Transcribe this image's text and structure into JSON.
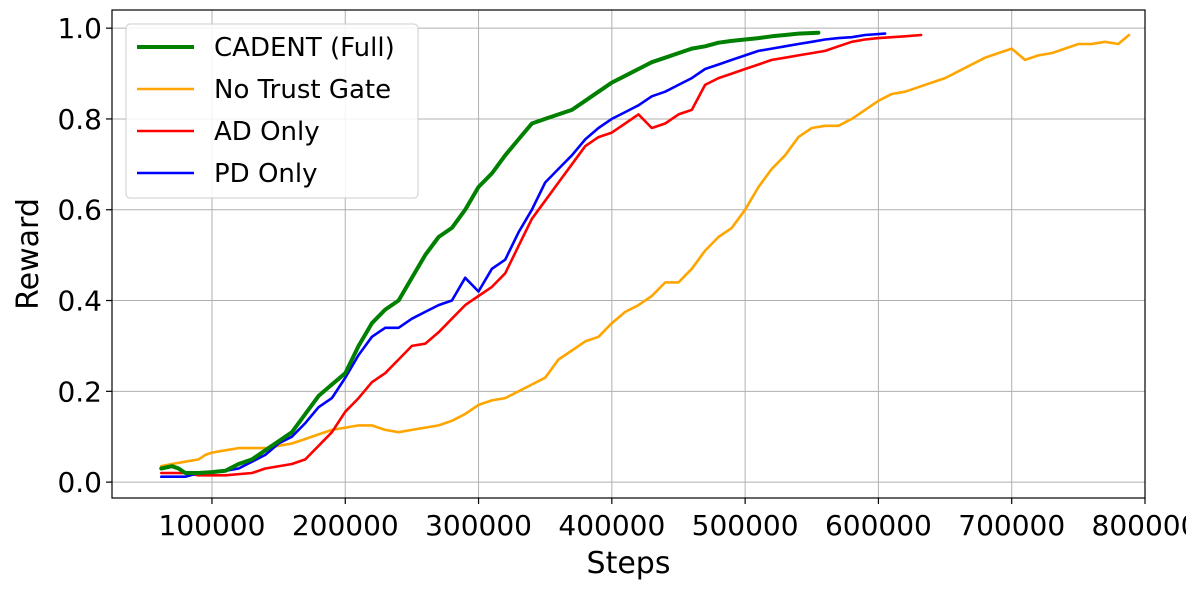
{
  "chart_data": {
    "type": "line",
    "title": "",
    "xlabel": "Steps",
    "ylabel": "Reward",
    "xlim": [
      25000,
      800000
    ],
    "ylim": [
      -0.035,
      1.04
    ],
    "xticks": [
      100000,
      200000,
      300000,
      400000,
      500000,
      600000,
      700000,
      800000
    ],
    "xtick_labels": [
      "100000",
      "200000",
      "300000",
      "400000",
      "500000",
      "600000",
      "700000",
      "800000"
    ],
    "yticks": [
      0.0,
      0.2,
      0.4,
      0.6,
      0.8,
      1.0
    ],
    "ytick_labels": [
      "0.0",
      "0.2",
      "0.4",
      "0.6",
      "0.8",
      "1.0"
    ],
    "grid": true,
    "legend_position": "top-left",
    "series": [
      {
        "name": "CADENT (Full)",
        "color": "#008000",
        "points": [
          [
            62000,
            0.03
          ],
          [
            70000,
            0.035
          ],
          [
            75000,
            0.03
          ],
          [
            80000,
            0.02
          ],
          [
            90000,
            0.02
          ],
          [
            100000,
            0.022
          ],
          [
            110000,
            0.025
          ],
          [
            120000,
            0.04
          ],
          [
            130000,
            0.05
          ],
          [
            140000,
            0.07
          ],
          [
            150000,
            0.09
          ],
          [
            160000,
            0.11
          ],
          [
            170000,
            0.15
          ],
          [
            180000,
            0.19
          ],
          [
            190000,
            0.215
          ],
          [
            200000,
            0.24
          ],
          [
            210000,
            0.3
          ],
          [
            220000,
            0.35
          ],
          [
            230000,
            0.38
          ],
          [
            240000,
            0.4
          ],
          [
            250000,
            0.45
          ],
          [
            260000,
            0.5
          ],
          [
            270000,
            0.54
          ],
          [
            280000,
            0.56
          ],
          [
            290000,
            0.6
          ],
          [
            300000,
            0.65
          ],
          [
            310000,
            0.68
          ],
          [
            320000,
            0.72
          ],
          [
            330000,
            0.755
          ],
          [
            340000,
            0.79
          ],
          [
            350000,
            0.8
          ],
          [
            360000,
            0.81
          ],
          [
            370000,
            0.82
          ],
          [
            380000,
            0.84
          ],
          [
            390000,
            0.86
          ],
          [
            400000,
            0.88
          ],
          [
            410000,
            0.895
          ],
          [
            420000,
            0.91
          ],
          [
            430000,
            0.925
          ],
          [
            440000,
            0.935
          ],
          [
            450000,
            0.945
          ],
          [
            460000,
            0.955
          ],
          [
            470000,
            0.96
          ],
          [
            480000,
            0.968
          ],
          [
            490000,
            0.972
          ],
          [
            500000,
            0.975
          ],
          [
            510000,
            0.978
          ],
          [
            520000,
            0.982
          ],
          [
            530000,
            0.985
          ],
          [
            540000,
            0.988
          ],
          [
            555000,
            0.99
          ]
        ]
      },
      {
        "name": "No Trust Gate",
        "color": "#FFA500",
        "points": [
          [
            62000,
            0.035
          ],
          [
            70000,
            0.04
          ],
          [
            80000,
            0.045
          ],
          [
            90000,
            0.05
          ],
          [
            95000,
            0.06
          ],
          [
            100000,
            0.065
          ],
          [
            110000,
            0.07
          ],
          [
            120000,
            0.075
          ],
          [
            130000,
            0.075
          ],
          [
            140000,
            0.075
          ],
          [
            150000,
            0.08
          ],
          [
            160000,
            0.085
          ],
          [
            170000,
            0.095
          ],
          [
            180000,
            0.105
          ],
          [
            190000,
            0.115
          ],
          [
            200000,
            0.12
          ],
          [
            210000,
            0.125
          ],
          [
            220000,
            0.125
          ],
          [
            230000,
            0.115
          ],
          [
            240000,
            0.11
          ],
          [
            250000,
            0.115
          ],
          [
            260000,
            0.12
          ],
          [
            270000,
            0.125
          ],
          [
            280000,
            0.135
          ],
          [
            290000,
            0.15
          ],
          [
            300000,
            0.17
          ],
          [
            310000,
            0.18
          ],
          [
            320000,
            0.185
          ],
          [
            330000,
            0.2
          ],
          [
            340000,
            0.215
          ],
          [
            350000,
            0.23
          ],
          [
            360000,
            0.27
          ],
          [
            370000,
            0.29
          ],
          [
            380000,
            0.31
          ],
          [
            390000,
            0.32
          ],
          [
            400000,
            0.35
          ],
          [
            410000,
            0.375
          ],
          [
            420000,
            0.39
          ],
          [
            430000,
            0.41
          ],
          [
            440000,
            0.44
          ],
          [
            450000,
            0.44
          ],
          [
            460000,
            0.47
          ],
          [
            470000,
            0.51
          ],
          [
            480000,
            0.54
          ],
          [
            490000,
            0.56
          ],
          [
            500000,
            0.6
          ],
          [
            510000,
            0.65
          ],
          [
            520000,
            0.69
          ],
          [
            530000,
            0.72
          ],
          [
            540000,
            0.76
          ],
          [
            550000,
            0.78
          ],
          [
            560000,
            0.785
          ],
          [
            570000,
            0.785
          ],
          [
            580000,
            0.8
          ],
          [
            590000,
            0.82
          ],
          [
            600000,
            0.84
          ],
          [
            610000,
            0.855
          ],
          [
            620000,
            0.86
          ],
          [
            630000,
            0.87
          ],
          [
            640000,
            0.88
          ],
          [
            650000,
            0.89
          ],
          [
            660000,
            0.905
          ],
          [
            670000,
            0.92
          ],
          [
            680000,
            0.935
          ],
          [
            690000,
            0.945
          ],
          [
            700000,
            0.955
          ],
          [
            710000,
            0.93
          ],
          [
            720000,
            0.94
          ],
          [
            730000,
            0.945
          ],
          [
            740000,
            0.955
          ],
          [
            750000,
            0.965
          ],
          [
            760000,
            0.965
          ],
          [
            770000,
            0.97
          ],
          [
            780000,
            0.965
          ],
          [
            788000,
            0.985
          ]
        ]
      },
      {
        "name": "AD Only",
        "color": "#FF0000",
        "points": [
          [
            62000,
            0.02
          ],
          [
            80000,
            0.02
          ],
          [
            90000,
            0.015
          ],
          [
            110000,
            0.015
          ],
          [
            130000,
            0.02
          ],
          [
            140000,
            0.03
          ],
          [
            160000,
            0.04
          ],
          [
            170000,
            0.05
          ],
          [
            180000,
            0.08
          ],
          [
            190000,
            0.11
          ],
          [
            200000,
            0.155
          ],
          [
            210000,
            0.185
          ],
          [
            220000,
            0.22
          ],
          [
            230000,
            0.24
          ],
          [
            240000,
            0.27
          ],
          [
            250000,
            0.3
          ],
          [
            260000,
            0.305
          ],
          [
            270000,
            0.33
          ],
          [
            280000,
            0.36
          ],
          [
            290000,
            0.39
          ],
          [
            300000,
            0.41
          ],
          [
            310000,
            0.43
          ],
          [
            320000,
            0.46
          ],
          [
            330000,
            0.52
          ],
          [
            340000,
            0.58
          ],
          [
            350000,
            0.62
          ],
          [
            360000,
            0.66
          ],
          [
            370000,
            0.7
          ],
          [
            380000,
            0.74
          ],
          [
            390000,
            0.76
          ],
          [
            400000,
            0.77
          ],
          [
            410000,
            0.79
          ],
          [
            420000,
            0.81
          ],
          [
            430000,
            0.78
          ],
          [
            440000,
            0.79
          ],
          [
            450000,
            0.81
          ],
          [
            460000,
            0.82
          ],
          [
            470000,
            0.875
          ],
          [
            480000,
            0.89
          ],
          [
            490000,
            0.9
          ],
          [
            500000,
            0.91
          ],
          [
            510000,
            0.92
          ],
          [
            520000,
            0.93
          ],
          [
            530000,
            0.935
          ],
          [
            540000,
            0.94
          ],
          [
            550000,
            0.945
          ],
          [
            560000,
            0.95
          ],
          [
            570000,
            0.96
          ],
          [
            580000,
            0.97
          ],
          [
            590000,
            0.975
          ],
          [
            600000,
            0.978
          ],
          [
            610000,
            0.98
          ],
          [
            620000,
            0.982
          ],
          [
            632000,
            0.985
          ]
        ]
      },
      {
        "name": "PD Only",
        "color": "#0000FF",
        "points": [
          [
            62000,
            0.012
          ],
          [
            80000,
            0.012
          ],
          [
            90000,
            0.02
          ],
          [
            110000,
            0.025
          ],
          [
            120000,
            0.03
          ],
          [
            130000,
            0.045
          ],
          [
            140000,
            0.06
          ],
          [
            150000,
            0.085
          ],
          [
            160000,
            0.1
          ],
          [
            170000,
            0.13
          ],
          [
            180000,
            0.165
          ],
          [
            190000,
            0.185
          ],
          [
            200000,
            0.23
          ],
          [
            210000,
            0.28
          ],
          [
            220000,
            0.32
          ],
          [
            230000,
            0.34
          ],
          [
            240000,
            0.34
          ],
          [
            250000,
            0.36
          ],
          [
            260000,
            0.375
          ],
          [
            270000,
            0.39
          ],
          [
            280000,
            0.4
          ],
          [
            290000,
            0.45
          ],
          [
            300000,
            0.42
          ],
          [
            310000,
            0.47
          ],
          [
            320000,
            0.49
          ],
          [
            330000,
            0.55
          ],
          [
            340000,
            0.6
          ],
          [
            350000,
            0.66
          ],
          [
            360000,
            0.69
          ],
          [
            370000,
            0.72
          ],
          [
            380000,
            0.755
          ],
          [
            390000,
            0.78
          ],
          [
            400000,
            0.8
          ],
          [
            410000,
            0.815
          ],
          [
            420000,
            0.83
          ],
          [
            430000,
            0.85
          ],
          [
            440000,
            0.86
          ],
          [
            450000,
            0.875
          ],
          [
            460000,
            0.89
          ],
          [
            470000,
            0.91
          ],
          [
            480000,
            0.92
          ],
          [
            490000,
            0.93
          ],
          [
            500000,
            0.94
          ],
          [
            510000,
            0.95
          ],
          [
            520000,
            0.955
          ],
          [
            530000,
            0.96
          ],
          [
            540000,
            0.965
          ],
          [
            550000,
            0.97
          ],
          [
            560000,
            0.975
          ],
          [
            570000,
            0.978
          ],
          [
            580000,
            0.98
          ],
          [
            590000,
            0.985
          ],
          [
            605000,
            0.988
          ]
        ]
      }
    ]
  }
}
